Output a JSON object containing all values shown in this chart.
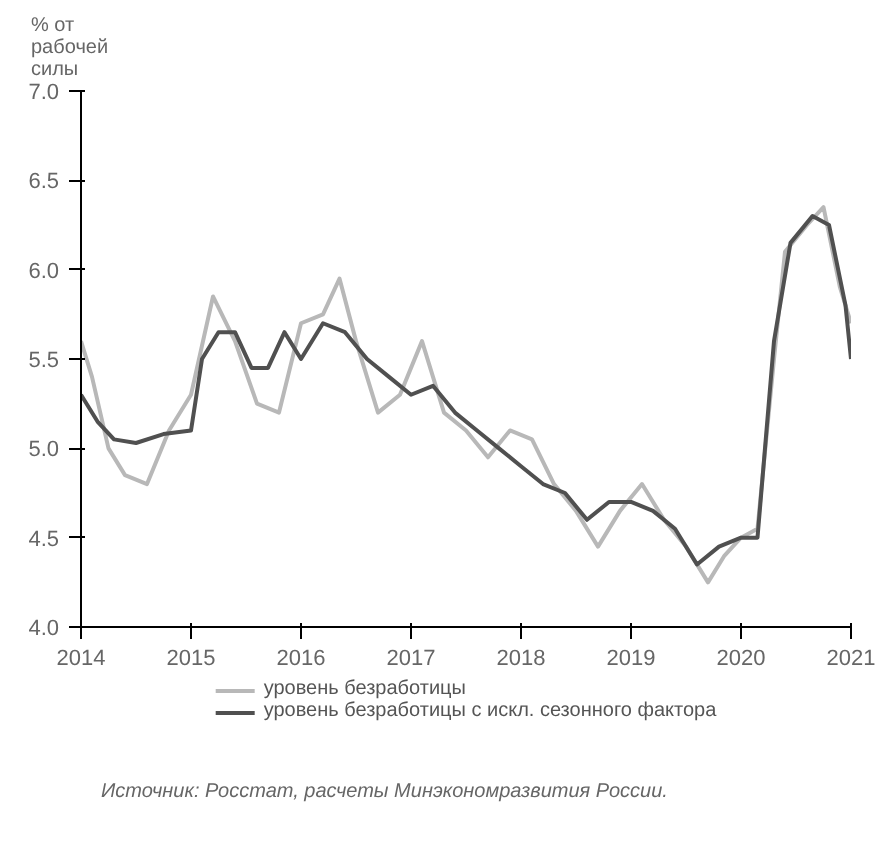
{
  "chart_data": {
    "type": "line",
    "ylabel": "% от\nрабочей\nсилы",
    "xlim": [
      2014,
      2021
    ],
    "xticks": [
      2014,
      2015,
      2016,
      2017,
      2018,
      2019,
      2020,
      2021
    ],
    "ylim": [
      4.0,
      7.0
    ],
    "yticks": [
      {
        "value": 4.0,
        "label": "4.0"
      },
      {
        "value": 4.5,
        "label": "4.5"
      },
      {
        "value": 5.0,
        "label": "5.0"
      },
      {
        "value": 5.5,
        "label": "5.5"
      },
      {
        "value": 6.0,
        "label": "6.0"
      },
      {
        "value": 6.5,
        "label": "6.5"
      },
      {
        "value": 7.0,
        "label": "7.0"
      }
    ],
    "grid": false,
    "legend": "bottom",
    "line_style": "solid",
    "series": [
      {
        "name": "уровень безработицы",
        "color": "#b8b8b8",
        "x": [
          2014.0,
          2014.1,
          2014.25,
          2014.4,
          2014.6,
          2014.8,
          2015.0,
          2015.2,
          2015.4,
          2015.6,
          2015.8,
          2016.0,
          2016.2,
          2016.35,
          2016.5,
          2016.7,
          2016.9,
          2017.1,
          2017.3,
          2017.5,
          2017.7,
          2017.9,
          2018.1,
          2018.3,
          2018.5,
          2018.7,
          2018.9,
          2019.1,
          2019.3,
          2019.5,
          2019.7,
          2019.85,
          2020.0,
          2020.15,
          2020.3,
          2020.4,
          2020.6,
          2020.75,
          2020.9,
          2021.0
        ],
        "values": [
          5.6,
          5.4,
          5.0,
          4.85,
          4.8,
          5.1,
          5.3,
          5.85,
          5.6,
          5.25,
          5.2,
          5.7,
          5.75,
          5.95,
          5.6,
          5.2,
          5.3,
          5.6,
          5.2,
          5.1,
          4.95,
          5.1,
          5.05,
          4.8,
          4.65,
          4.45,
          4.65,
          4.8,
          4.6,
          4.45,
          4.25,
          4.4,
          4.5,
          4.55,
          5.5,
          6.1,
          6.25,
          6.35,
          5.9,
          5.7
        ]
      },
      {
        "name": "уровень безработицы с искл. сезонного фактора",
        "color": "#505050",
        "x": [
          2014.0,
          2014.15,
          2014.3,
          2014.5,
          2014.75,
          2015.0,
          2015.1,
          2015.25,
          2015.4,
          2015.55,
          2015.7,
          2015.85,
          2016.0,
          2016.2,
          2016.4,
          2016.6,
          2016.8,
          2017.0,
          2017.2,
          2017.4,
          2017.6,
          2017.8,
          2018.0,
          2018.2,
          2018.4,
          2018.6,
          2018.8,
          2019.0,
          2019.2,
          2019.4,
          2019.6,
          2019.8,
          2020.0,
          2020.15,
          2020.3,
          2020.45,
          2020.65,
          2020.8,
          2020.95,
          2021.0
        ],
        "values": [
          5.3,
          5.15,
          5.05,
          5.03,
          5.08,
          5.1,
          5.5,
          5.65,
          5.65,
          5.45,
          5.45,
          5.65,
          5.5,
          5.7,
          5.65,
          5.5,
          5.4,
          5.3,
          5.35,
          5.2,
          5.1,
          5.0,
          4.9,
          4.8,
          4.75,
          4.6,
          4.7,
          4.7,
          4.65,
          4.55,
          4.35,
          4.45,
          4.5,
          4.5,
          5.6,
          6.15,
          6.3,
          6.25,
          5.8,
          5.5
        ]
      }
    ],
    "annotations": [
      "Источник: Росстат, расчеты Минэкономразвития России."
    ]
  }
}
